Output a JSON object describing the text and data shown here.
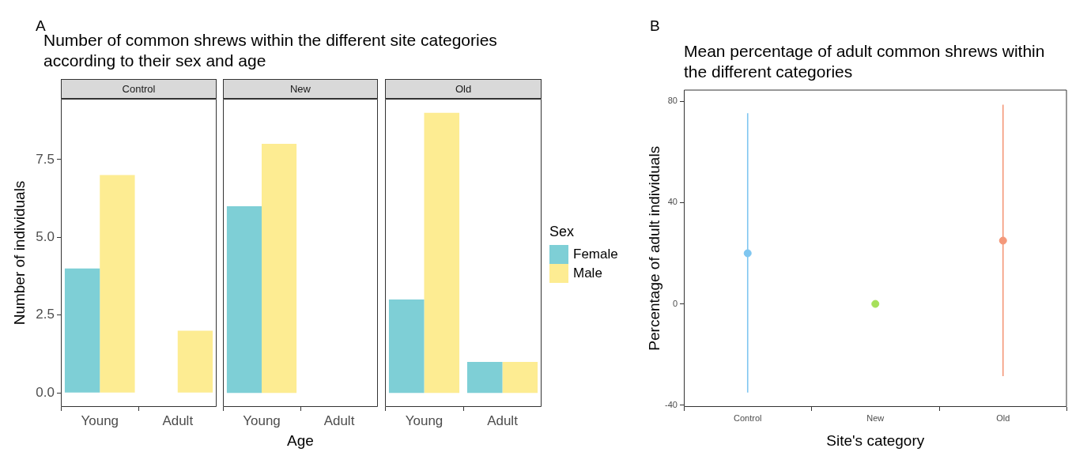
{
  "chart_data": [
    {
      "type": "bar",
      "title": "Number of common shrews within the different site categories according to their sex and age",
      "subtitle": "Control",
      "ylabel": "Number of individuals",
      "annotations": [
        "A"
      ],
      "categories": [
        "Young",
        "Adult"
      ],
      "series": [
        {
          "color": "#7ecfd6",
          "values": [
            4,
            0
          ]
        },
        {
          "color": "#fdec92",
          "values": [
            7,
            2
          ]
        }
      ],
      "ylim": [
        -0.45,
        9.45
      ],
      "yticks": [
        {
          "value": 0,
          "label": "0.0"
        },
        2.5,
        {
          "value": 5,
          "label": "5.0"
        },
        7.5
      ],
      "grid": false
    },
    {
      "type": "bar",
      "subtitle": "New",
      "xlabel": "Age",
      "categories": [
        "Young",
        "Adult"
      ],
      "series": [
        {
          "color": "#7ecfd6",
          "values": [
            6,
            0
          ]
        },
        {
          "color": "#fdec92",
          "values": [
            8,
            0
          ]
        }
      ],
      "ylim": [
        -0.45,
        9.45
      ],
      "tick_labels": "x",
      "grid": false
    },
    {
      "type": "bar",
      "subtitle": "Old",
      "legend_title": "Sex",
      "legend": "right",
      "categories": [
        "Young",
        "Adult"
      ],
      "series": [
        {
          "name": "Female",
          "color": "#7ecfd6",
          "values": [
            3,
            1
          ]
        },
        {
          "name": "Male",
          "color": "#fdec92",
          "values": [
            9,
            1
          ]
        }
      ],
      "ylim": [
        -0.45,
        9.45
      ],
      "tick_labels": "x",
      "grid": false
    },
    {
      "type": "scatter",
      "title": "Mean percentage of adult common shrews within the different categories",
      "xlabel": "Site's category",
      "ylabel": "Percentage of adult individuals",
      "annotations": [
        "B"
      ],
      "x": [
        "Control",
        "New",
        "Old"
      ],
      "series": [
        {
          "colors": [
            "#7fc6f0",
            "#a6e05a",
            "#f4987a"
          ],
          "values": [
            20,
            0,
            25
          ],
          "errors": [
            [
              -35,
              75.3
            ],
            null,
            [
              -28.5,
              78.7
            ]
          ]
        }
      ],
      "ylim": [
        -40.7,
        84.6
      ],
      "yticks": [
        -40,
        0,
        40,
        80
      ],
      "marker": "circle",
      "grid": false
    }
  ]
}
